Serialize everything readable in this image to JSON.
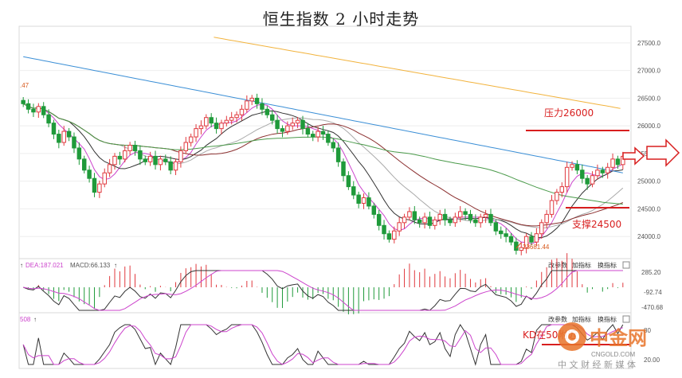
{
  "title": "恒生指数 2 小时走势",
  "main_panel": {
    "left_edge_label": ".47",
    "y_ticks": [
      "27500.0",
      "27000.0",
      "26500.0",
      "26000.0",
      "25500.0",
      "25000.0",
      "24500.0",
      "24000.0"
    ],
    "low_label": "23681.44",
    "resistance_label": "压力26000",
    "support_label": "支撑24500"
  },
  "macd_panel": {
    "dea_label": "DEA:187.021",
    "macd_label": "MACD:66.133",
    "buttons": [
      "改参数",
      "加指标",
      "换指标"
    ],
    "y_ticks": [
      "285.20",
      "-92.74",
      "-470.68"
    ]
  },
  "kd_panel": {
    "left_label": "508",
    "buttons": [
      "改参数",
      "加指标",
      "换指标"
    ],
    "annotation": "KD在50附近",
    "y_ticks": [
      "80",
      "20.00"
    ]
  },
  "watermark": {
    "name": "中金网",
    "domain": "CNGOLD.COM",
    "subtitle": "中 文 财 经 新 媒 体"
  },
  "colors": {
    "up": "#e0393e",
    "down": "#1f9a3a",
    "ma_blue": "#3b8fd6",
    "ma_orange": "#f2b33d",
    "ma_green": "#4a9a4a",
    "ma_brown": "#8b2f2f",
    "ma_magenta": "#cc44cc",
    "ma_gray": "#aaaaaa",
    "annotation_red": "#d81e1e"
  },
  "chart_data": {
    "type": "candlestick",
    "title": "恒生指数 2 小时走势",
    "y_range": [
      23600,
      27800
    ],
    "y_ticks": [
      24000,
      24500,
      25000,
      25500,
      26000,
      26500,
      27000,
      27500
    ],
    "closes": [
      26400,
      26300,
      26250,
      26350,
      26200,
      26050,
      25850,
      25700,
      25900,
      25800,
      25600,
      25400,
      25200,
      25050,
      24800,
      24950,
      25150,
      25300,
      25450,
      25400,
      25550,
      25650,
      25550,
      25400,
      25350,
      25450,
      25300,
      25400,
      25350,
      25200,
      25350,
      25550,
      25700,
      25800,
      25950,
      26000,
      26150,
      26050,
      25950,
      26050,
      26100,
      26150,
      26200,
      26300,
      26450,
      26500,
      26400,
      26300,
      26200,
      26100,
      25950,
      25900,
      26000,
      26050,
      26100,
      25950,
      25850,
      25800,
      25900,
      25850,
      25700,
      25600,
      25350,
      25100,
      24900,
      24750,
      24600,
      24700,
      24550,
      24400,
      24200,
      24050,
      23950,
      24100,
      24250,
      24350,
      24450,
      24300,
      24250,
      24350,
      24200,
      24300,
      24400,
      24300,
      24250,
      24350,
      24450,
      24400,
      24300,
      24250,
      24350,
      24400,
      24250,
      24100,
      24050,
      24000,
      23900,
      23750,
      23800,
      24000,
      23900,
      24050,
      24250,
      24400,
      24650,
      24800,
      24900,
      25250,
      25300,
      25200,
      25050,
      24950,
      25100,
      25200,
      25150,
      25250,
      25400,
      25300,
      25450
    ],
    "low_point": 23681.44,
    "resistance": 26000,
    "support": 24500,
    "macd_y_ticks": [
      285.2,
      -92.74,
      -470.68
    ],
    "dea": 187.021,
    "macd": 66.133
  }
}
